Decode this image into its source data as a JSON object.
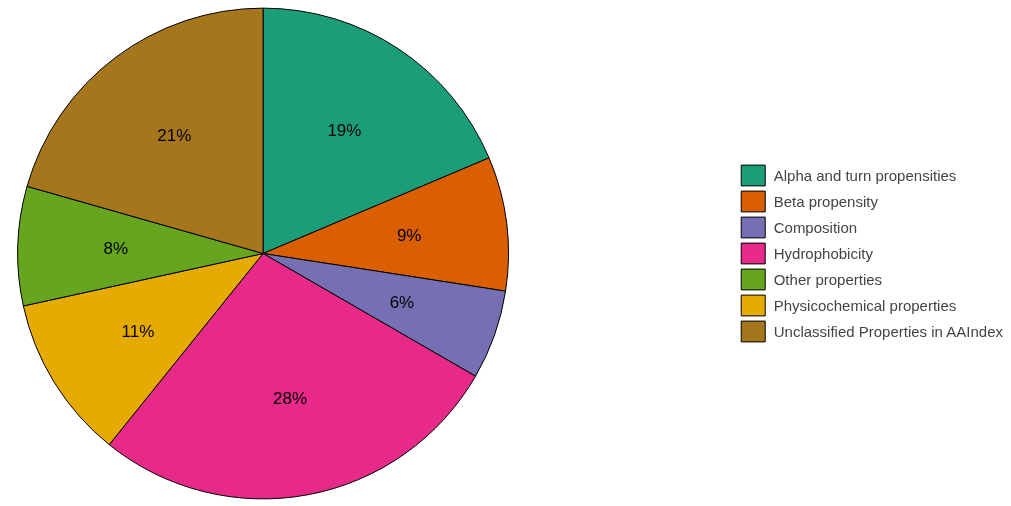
{
  "chart_data": {
    "type": "pie",
    "categories": [
      "Alpha and turn propensities",
      "Beta propensity",
      "Composition",
      "Hydrophobicity",
      "Physicochemical properties",
      "Other properties",
      "Unclassified Properties in AAIndex"
    ],
    "values": [
      19,
      9,
      6,
      28,
      11,
      8,
      21
    ],
    "value_labels": [
      "19%",
      "9%",
      "6%",
      "28%",
      "11%",
      "8%",
      "21%"
    ],
    "colors": [
      "#1b9e77",
      "#d95f02",
      "#7570b3",
      "#e7298a",
      "#e6ab02",
      "#66a61e",
      "#a6761d"
    ],
    "legend": "right"
  }
}
